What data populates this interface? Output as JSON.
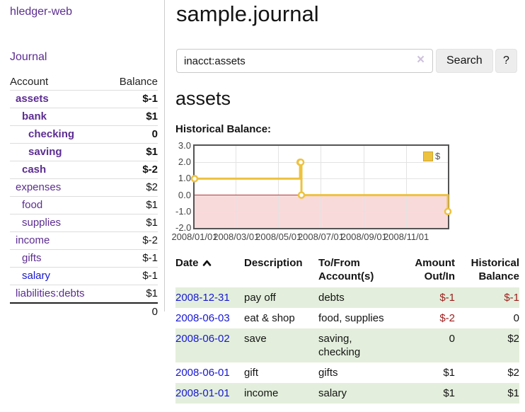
{
  "app": {
    "brand": "hledger-web",
    "nav": {
      "journal": "Journal"
    }
  },
  "sidebar": {
    "header": {
      "account": "Account",
      "balance": "Balance"
    },
    "accounts": [
      {
        "name": "assets",
        "balance": "$-1",
        "depth": 1,
        "bold": true,
        "negative": "strong"
      },
      {
        "name": "bank",
        "balance": "$1",
        "depth": 2,
        "bold": true,
        "negative": "none"
      },
      {
        "name": "checking",
        "balance": "0",
        "depth": 3,
        "bold": true,
        "negative": "none"
      },
      {
        "name": "saving",
        "balance": "$1",
        "depth": 3,
        "bold": true,
        "negative": "none"
      },
      {
        "name": "cash",
        "balance": "$-2",
        "depth": 2,
        "bold": true,
        "negative": "strong"
      },
      {
        "name": "expenses",
        "balance": "$2",
        "depth": 1,
        "bold": false,
        "negative": "none"
      },
      {
        "name": "food",
        "balance": "$1",
        "depth": 2,
        "bold": false,
        "negative": "none"
      },
      {
        "name": "supplies",
        "balance": "$1",
        "depth": 2,
        "bold": false,
        "negative": "none"
      },
      {
        "name": "income",
        "balance": "$-2",
        "depth": 1,
        "bold": false,
        "negative": "soft"
      },
      {
        "name": "gifts",
        "balance": "$-1",
        "depth": 2,
        "bold": false,
        "negative": "soft"
      },
      {
        "name": "salary",
        "balance": "$-1",
        "depth": 2,
        "bold": false,
        "negative": "soft",
        "unvisited": true
      },
      {
        "name": "liabilities:debts",
        "balance": "$1",
        "depth": 1,
        "bold": false,
        "negative": "none"
      }
    ],
    "total": "0"
  },
  "main": {
    "title": "sample.journal",
    "account_heading": "assets",
    "chart_title": "Historical Balance:"
  },
  "search": {
    "value": "inacct:assets",
    "clear_glyph": "×",
    "search_button": "Search",
    "help_button": "?"
  },
  "chart_data": {
    "type": "line",
    "step": true,
    "title": "Historical Balance:",
    "x_range": [
      "2008-01-01",
      "2008-12-31"
    ],
    "ylim": [
      -2,
      3
    ],
    "y_ticks": [
      "3.0",
      "2.0",
      "1.0",
      "0.0",
      "-1.0",
      "-2.0"
    ],
    "x_ticks": [
      "2008/01/01",
      "2008/03/01",
      "2008/05/01",
      "2008/07/01",
      "2008/09/01",
      "2008/11/01"
    ],
    "series": [
      {
        "name": "$",
        "color": "#edc240",
        "points": [
          {
            "x": "2008-01-01",
            "y": 1
          },
          {
            "x": "2008-06-01",
            "y": 2
          },
          {
            "x": "2008-06-02",
            "y": 2
          },
          {
            "x": "2008-06-03",
            "y": 0
          },
          {
            "x": "2008-12-31",
            "y": -1
          }
        ]
      }
    ],
    "legend_position": "top-right",
    "negative_region": true,
    "grid": true
  },
  "register": {
    "headers": {
      "date": "Date",
      "description": "Description",
      "accounts": "To/From Account(s)",
      "amount": "Amount Out/In",
      "balance": "Historical Balance"
    },
    "rows": [
      {
        "date": "2008-12-31",
        "description": "pay off",
        "accounts": "debts",
        "amount": "$-1",
        "amount_negative": true,
        "balance": "$-1",
        "balance_negative": true
      },
      {
        "date": "2008-06-03",
        "description": "eat & shop",
        "accounts": "food, supplies",
        "amount": "$-2",
        "amount_negative": true,
        "balance": "0",
        "balance_negative": false
      },
      {
        "date": "2008-06-02",
        "description": "save",
        "accounts": "saving, checking",
        "amount": "0",
        "amount_negative": false,
        "balance": "$2",
        "balance_negative": false
      },
      {
        "date": "2008-06-01",
        "description": "gift",
        "accounts": "gifts",
        "amount": "$1",
        "amount_negative": false,
        "balance": "$2",
        "balance_negative": false
      },
      {
        "date": "2008-01-01",
        "description": "income",
        "accounts": "salary",
        "amount": "$1",
        "amount_negative": false,
        "balance": "$1",
        "balance_negative": false
      }
    ]
  },
  "colors": {
    "link_purple": "#5c2d91",
    "link_blue": "#1717d1",
    "negative_strong": "#9b1c1c",
    "negative_soft": "#bd6d75",
    "row_stripe_green": "#e3efdc",
    "series_gold": "#edc240",
    "chart_negative_fill": "#f9dada",
    "chart_zero_line": "#b23b3b",
    "chart_border": "#545454"
  }
}
